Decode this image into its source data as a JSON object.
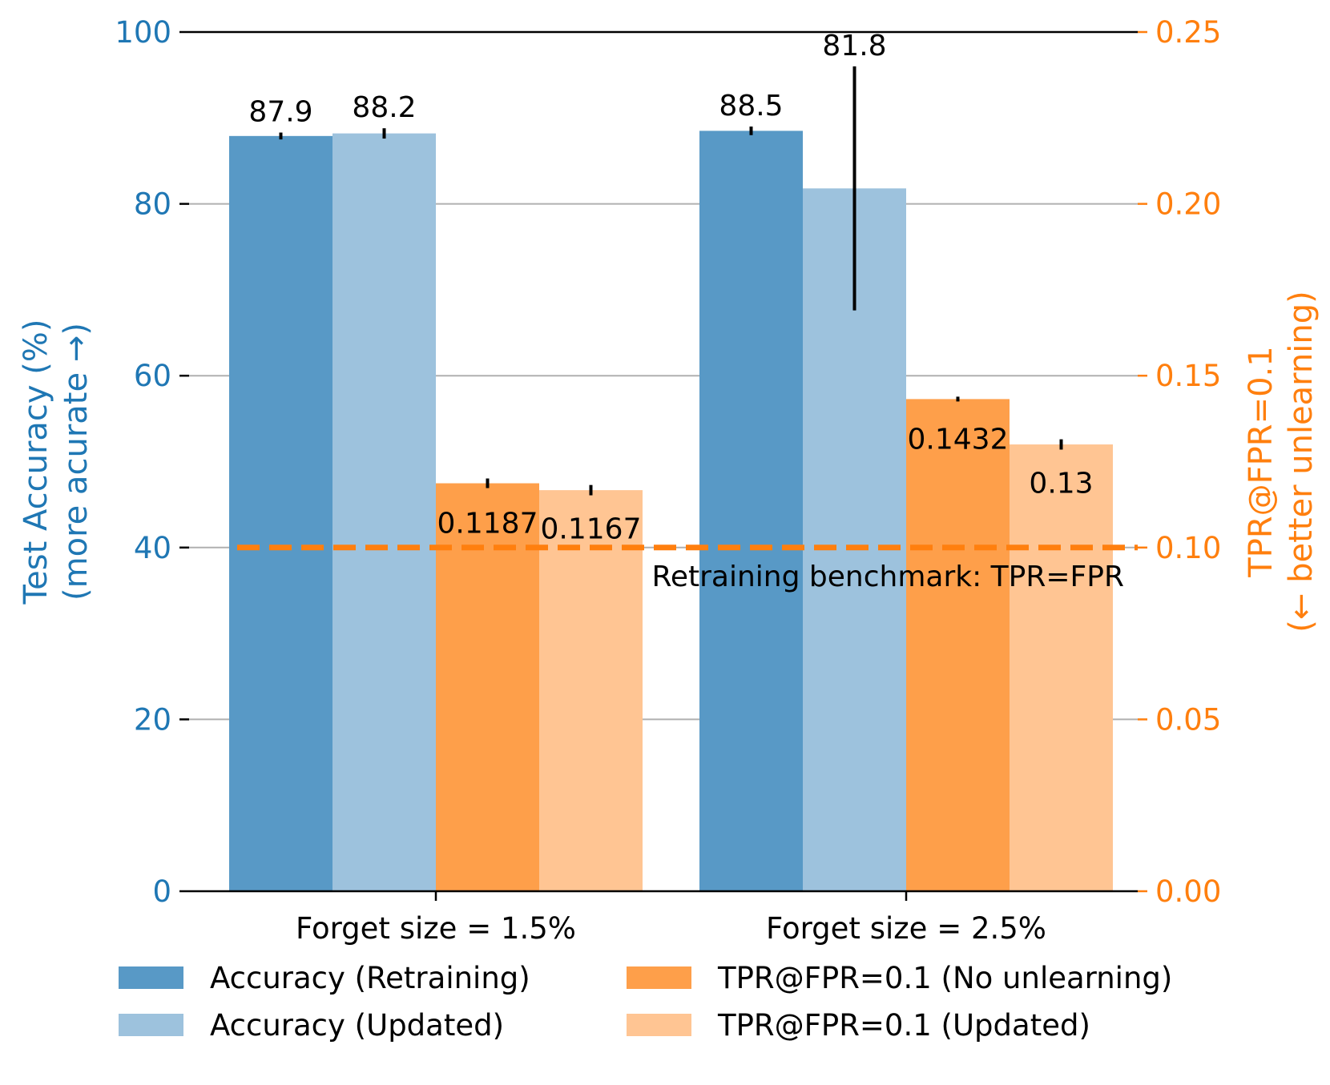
{
  "chart_data": {
    "type": "bar",
    "categories": [
      "Forget size = 1.5%",
      "Forget size = 2.5%"
    ],
    "y_left": {
      "label_line1": "Test Accuracy (%)",
      "label_line2": "(more acurate →)",
      "ylim": [
        0,
        100
      ],
      "ticks": [
        0,
        20,
        40,
        60,
        80,
        100
      ],
      "tick_labels": [
        "0",
        "20",
        "40",
        "60",
        "80",
        "100"
      ],
      "color": "#1f77b4"
    },
    "y_right": {
      "label_line1": "TPR@FPR=0.1",
      "label_line2": "(← better unlearning)",
      "ylim": [
        0,
        0.25
      ],
      "ticks": [
        0,
        0.05,
        0.1,
        0.15,
        0.2,
        0.25
      ],
      "tick_labels": [
        "0.00",
        "0.05",
        "0.10",
        "0.15",
        "0.20",
        "0.25"
      ],
      "color": "#ff7f0e"
    },
    "series": [
      {
        "name": "Accuracy (Retraining)",
        "axis": "left",
        "color": "#5899c6",
        "values": [
          87.9,
          88.5
        ],
        "err": [
          0.4,
          0.5
        ],
        "value_labels": [
          "87.9",
          "88.5"
        ]
      },
      {
        "name": "Accuracy (Updated)",
        "axis": "left",
        "color": "#9dc2dd",
        "values": [
          88.2,
          81.8
        ],
        "err": [
          0.6,
          14.2
        ],
        "value_labels": [
          "88.2",
          "81.8"
        ]
      },
      {
        "name": "TPR@FPR=0.1 (No unlearning)",
        "axis": "right",
        "color": "#fe9f4a",
        "values": [
          0.1187,
          0.1432
        ],
        "err": [
          0.0014,
          0.0002
        ],
        "value_labels": [
          "0.1187",
          "0.1432"
        ]
      },
      {
        "name": "TPR@FPR=0.1 (Updated)",
        "axis": "right",
        "color": "#ffc593",
        "values": [
          0.1167,
          0.13
        ],
        "err": [
          0.0015,
          0.0015
        ],
        "value_labels": [
          "0.1167",
          "0.13"
        ]
      }
    ],
    "reference_line": {
      "value": 0.1,
      "axis": "right",
      "style": "dashed",
      "color": "#ff7f0e",
      "label": "Retraining benchmark: TPR=FPR"
    },
    "grid": "horizontal",
    "legend": {
      "position": "bottom",
      "columns": 2
    }
  }
}
